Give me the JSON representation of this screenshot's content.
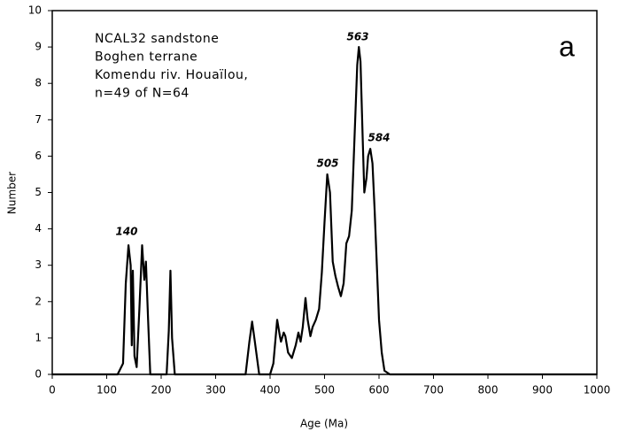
{
  "chart_data": {
    "type": "line",
    "x_label": "Age (Ma)",
    "y_label": "Number",
    "text_block": [
      "NCAL32 sandstone",
      "Boghen terrane",
      "Komendu riv. Houaïlou,",
      "n=49 of N=64"
    ],
    "panel_label": "a",
    "annotations": [
      "140",
      "505",
      "563",
      "584"
    ],
    "xlim": [
      0,
      1000
    ],
    "ylim": [
      0,
      10
    ],
    "xticks": [
      0,
      100,
      200,
      300,
      400,
      500,
      600,
      700,
      800,
      900,
      1000
    ],
    "yticks": [
      0,
      1,
      2,
      3,
      4,
      5,
      6,
      7,
      8,
      9,
      10
    ],
    "series": [
      {
        "color": "#000000",
        "x": [
          0,
          120,
          130,
          135,
          140,
          144,
          146,
          148,
          151,
          155,
          160,
          165,
          169,
          172,
          176,
          180,
          200,
          210,
          214,
          217,
          220,
          225,
          300,
          355,
          362,
          367,
          372,
          380,
          400,
          406,
          413,
          418,
          420,
          425,
          428,
          433,
          440,
          447,
          452,
          456,
          460,
          465,
          469,
          474,
          478,
          484,
          490,
          495,
          500,
          505,
          510,
          515,
          520,
          525,
          530,
          535,
          540,
          545,
          550,
          555,
          560,
          563,
          566,
          570,
          573,
          577,
          580,
          584,
          588,
          592,
          596,
          600,
          605,
          610,
          620,
          1000
        ],
        "values": [
          0,
          0,
          0.3,
          2.5,
          3.55,
          3.0,
          0.8,
          2.85,
          0.5,
          0.2,
          1.8,
          3.55,
          2.6,
          3.1,
          1.5,
          0,
          0,
          0,
          1.2,
          2.85,
          1.0,
          0,
          0,
          0,
          0.9,
          1.45,
          0.9,
          0,
          0,
          0.3,
          1.5,
          1.05,
          0.9,
          1.15,
          1.05,
          0.6,
          0.45,
          0.8,
          1.15,
          0.9,
          1.3,
          2.1,
          1.5,
          1.05,
          1.3,
          1.5,
          1.8,
          2.8,
          4.2,
          5.5,
          5.0,
          3.1,
          2.7,
          2.4,
          2.15,
          2.5,
          3.6,
          3.8,
          4.5,
          6.5,
          8.5,
          9.0,
          8.6,
          6.5,
          5.0,
          5.4,
          6.0,
          6.2,
          5.8,
          4.5,
          3.0,
          1.5,
          0.6,
          0.1,
          0,
          0
        ]
      }
    ]
  }
}
